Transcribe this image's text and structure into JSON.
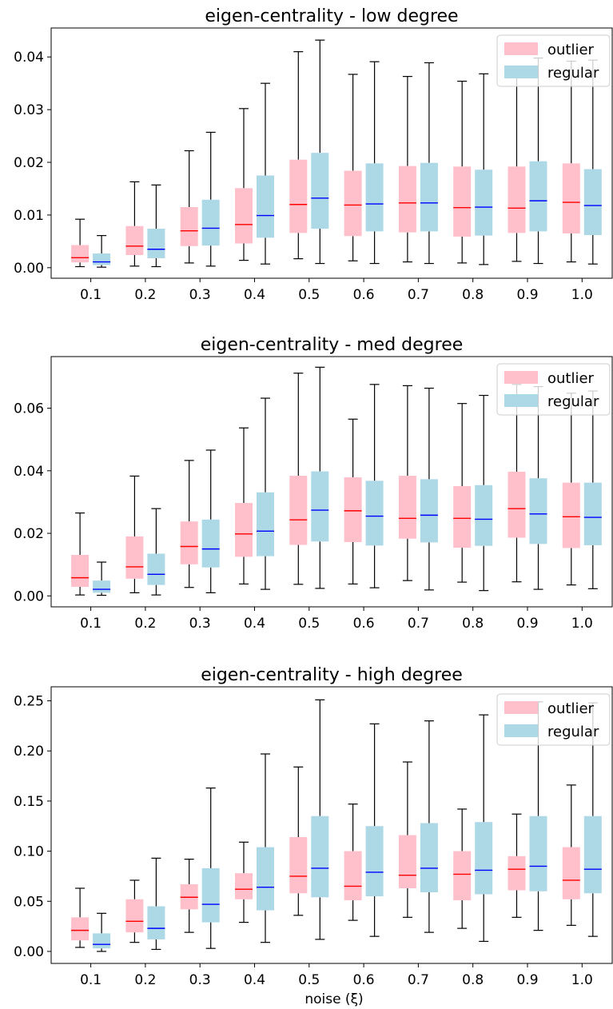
{
  "colors": {
    "outlier_fill": "#ffc0cb",
    "regular_fill": "#add8e6",
    "outlier_median": "#ff0000",
    "regular_median": "#0000ff",
    "whisker": "#000000"
  },
  "legend": {
    "outlier": "outlier",
    "regular": "regular"
  },
  "xlabel": "noise (ξ)",
  "chart_data": [
    {
      "type": "box",
      "title": "eigen-centrality - low degree",
      "xlabel": "",
      "ylabel": "",
      "categories": [
        "0.1",
        "0.2",
        "0.3",
        "0.4",
        "0.5",
        "0.6",
        "0.7",
        "0.8",
        "0.9",
        "1.0"
      ],
      "ylim": [
        -0.002,
        0.0455
      ],
      "yticks": [
        0.0,
        0.01,
        0.02,
        0.03,
        0.04
      ],
      "ytick_labels": [
        "0.00",
        "0.01",
        "0.02",
        "0.03",
        "0.04"
      ],
      "legend_position": "top-right",
      "grid": false,
      "series": [
        {
          "name": "outlier",
          "boxes": [
            {
              "whislo": 0.0002,
              "q1": 0.001,
              "med": 0.0019,
              "q3": 0.0043,
              "whishi": 0.0092
            },
            {
              "whislo": 0.0003,
              "q1": 0.0024,
              "med": 0.0041,
              "q3": 0.0079,
              "whishi": 0.0163
            },
            {
              "whislo": 0.0009,
              "q1": 0.0041,
              "med": 0.007,
              "q3": 0.0115,
              "whishi": 0.0222
            },
            {
              "whislo": 0.0014,
              "q1": 0.0046,
              "med": 0.0082,
              "q3": 0.0151,
              "whishi": 0.0302
            },
            {
              "whislo": 0.0017,
              "q1": 0.0066,
              "med": 0.012,
              "q3": 0.0205,
              "whishi": 0.041
            },
            {
              "whislo": 0.0013,
              "q1": 0.006,
              "med": 0.0119,
              "q3": 0.0184,
              "whishi": 0.0367
            },
            {
              "whislo": 0.0011,
              "q1": 0.0067,
              "med": 0.0123,
              "q3": 0.0193,
              "whishi": 0.0363
            },
            {
              "whislo": 0.0009,
              "q1": 0.0059,
              "med": 0.0114,
              "q3": 0.0192,
              "whishi": 0.0354
            },
            {
              "whislo": 0.0012,
              "q1": 0.0066,
              "med": 0.0113,
              "q3": 0.0192,
              "whishi": 0.0382
            },
            {
              "whislo": 0.0011,
              "q1": 0.0065,
              "med": 0.0124,
              "q3": 0.0198,
              "whishi": 0.0392
            }
          ]
        },
        {
          "name": "regular",
          "boxes": [
            {
              "whislo": 0.0001,
              "q1": 0.0005,
              "med": 0.0011,
              "q3": 0.0027,
              "whishi": 0.0061
            },
            {
              "whislo": 0.0002,
              "q1": 0.0018,
              "med": 0.0035,
              "q3": 0.0074,
              "whishi": 0.0157
            },
            {
              "whislo": 0.0003,
              "q1": 0.0042,
              "med": 0.0075,
              "q3": 0.0129,
              "whishi": 0.0257
            },
            {
              "whislo": 0.0007,
              "q1": 0.0057,
              "med": 0.0099,
              "q3": 0.0175,
              "whishi": 0.035
            },
            {
              "whislo": 0.0008,
              "q1": 0.0074,
              "med": 0.0132,
              "q3": 0.0218,
              "whishi": 0.0432
            },
            {
              "whislo": 0.0008,
              "q1": 0.0069,
              "med": 0.0121,
              "q3": 0.0198,
              "whishi": 0.0391
            },
            {
              "whislo": 0.0008,
              "q1": 0.0069,
              "med": 0.0123,
              "q3": 0.0199,
              "whishi": 0.0389
            },
            {
              "whislo": 0.0006,
              "q1": 0.0061,
              "med": 0.0115,
              "q3": 0.0186,
              "whishi": 0.0368
            },
            {
              "whislo": 0.0008,
              "q1": 0.0069,
              "med": 0.0127,
              "q3": 0.0202,
              "whishi": 0.0398
            },
            {
              "whislo": 0.0007,
              "q1": 0.0062,
              "med": 0.0118,
              "q3": 0.0187,
              "whishi": 0.0394
            }
          ]
        }
      ]
    },
    {
      "type": "box",
      "title": "eigen-centrality - med degree",
      "xlabel": "",
      "ylabel": "",
      "categories": [
        "0.1",
        "0.2",
        "0.3",
        "0.4",
        "0.5",
        "0.6",
        "0.7",
        "0.8",
        "0.9",
        "1.0"
      ],
      "ylim": [
        -0.0035,
        0.0765
      ],
      "yticks": [
        0.0,
        0.02,
        0.04,
        0.06
      ],
      "ytick_labels": [
        "0.00",
        "0.02",
        "0.04",
        "0.06"
      ],
      "legend_position": "top-right",
      "grid": false,
      "series": [
        {
          "name": "outlier",
          "boxes": [
            {
              "whislo": 0.0003,
              "q1": 0.0029,
              "med": 0.0058,
              "q3": 0.0131,
              "whishi": 0.0265
            },
            {
              "whislo": 0.001,
              "q1": 0.0055,
              "med": 0.0093,
              "q3": 0.019,
              "whishi": 0.0383
            },
            {
              "whislo": 0.0027,
              "q1": 0.0101,
              "med": 0.0158,
              "q3": 0.0238,
              "whishi": 0.0433
            },
            {
              "whislo": 0.0038,
              "q1": 0.0125,
              "med": 0.0198,
              "q3": 0.0297,
              "whishi": 0.0537
            },
            {
              "whislo": 0.0037,
              "q1": 0.0163,
              "med": 0.0243,
              "q3": 0.0384,
              "whishi": 0.0712
            },
            {
              "whislo": 0.0038,
              "q1": 0.0172,
              "med": 0.0272,
              "q3": 0.0379,
              "whishi": 0.0565
            },
            {
              "whislo": 0.0049,
              "q1": 0.0183,
              "med": 0.0248,
              "q3": 0.0384,
              "whishi": 0.0672
            },
            {
              "whislo": 0.0044,
              "q1": 0.0154,
              "med": 0.0248,
              "q3": 0.0351,
              "whishi": 0.0615
            },
            {
              "whislo": 0.0045,
              "q1": 0.0186,
              "med": 0.0279,
              "q3": 0.0397,
              "whishi": 0.0676
            },
            {
              "whislo": 0.0035,
              "q1": 0.0153,
              "med": 0.0253,
              "q3": 0.0362,
              "whishi": 0.0648
            }
          ]
        },
        {
          "name": "regular",
          "boxes": [
            {
              "whislo": 0.0002,
              "q1": 0.001,
              "med": 0.0021,
              "q3": 0.0049,
              "whishi": 0.0108
            },
            {
              "whislo": 0.0003,
              "q1": 0.0035,
              "med": 0.0069,
              "q3": 0.0135,
              "whishi": 0.0279
            },
            {
              "whislo": 0.001,
              "q1": 0.0091,
              "med": 0.015,
              "q3": 0.0244,
              "whishi": 0.0466
            },
            {
              "whislo": 0.0021,
              "q1": 0.0127,
              "med": 0.0207,
              "q3": 0.0331,
              "whishi": 0.0632
            },
            {
              "whislo": 0.0024,
              "q1": 0.0174,
              "med": 0.0274,
              "q3": 0.0398,
              "whishi": 0.0731
            },
            {
              "whislo": 0.0026,
              "q1": 0.0161,
              "med": 0.0255,
              "q3": 0.0368,
              "whishi": 0.0676
            },
            {
              "whislo": 0.0019,
              "q1": 0.0171,
              "med": 0.0258,
              "q3": 0.0373,
              "whishi": 0.0664
            },
            {
              "whislo": 0.0017,
              "q1": 0.016,
              "med": 0.0245,
              "q3": 0.0354,
              "whishi": 0.0641
            },
            {
              "whislo": 0.0021,
              "q1": 0.0166,
              "med": 0.0262,
              "q3": 0.0376,
              "whishi": 0.0669
            },
            {
              "whislo": 0.0023,
              "q1": 0.0162,
              "med": 0.0251,
              "q3": 0.0362,
              "whishi": 0.0655
            }
          ]
        }
      ]
    },
    {
      "type": "box",
      "title": "eigen-centrality - high degree",
      "xlabel": "noise (ξ)",
      "ylabel": "",
      "categories": [
        "0.1",
        "0.2",
        "0.3",
        "0.4",
        "0.5",
        "0.6",
        "0.7",
        "0.8",
        "0.9",
        "1.0"
      ],
      "ylim": [
        -0.012,
        0.264
      ],
      "yticks": [
        0.0,
        0.05,
        0.1,
        0.15,
        0.2,
        0.25
      ],
      "ytick_labels": [
        "0.00",
        "0.05",
        "0.10",
        "0.15",
        "0.20",
        "0.25"
      ],
      "legend_position": "top-right",
      "grid": false,
      "series": [
        {
          "name": "outlier",
          "boxes": [
            {
              "whislo": 0.004,
              "q1": 0.011,
              "med": 0.021,
              "q3": 0.034,
              "whishi": 0.063
            },
            {
              "whislo": 0.009,
              "q1": 0.019,
              "med": 0.03,
              "q3": 0.052,
              "whishi": 0.071
            },
            {
              "whislo": 0.019,
              "q1": 0.042,
              "med": 0.054,
              "q3": 0.067,
              "whishi": 0.092
            },
            {
              "whislo": 0.029,
              "q1": 0.052,
              "med": 0.062,
              "q3": 0.078,
              "whishi": 0.109
            },
            {
              "whislo": 0.036,
              "q1": 0.058,
              "med": 0.075,
              "q3": 0.114,
              "whishi": 0.184
            },
            {
              "whislo": 0.031,
              "q1": 0.051,
              "med": 0.065,
              "q3": 0.1,
              "whishi": 0.147
            },
            {
              "whislo": 0.034,
              "q1": 0.063,
              "med": 0.076,
              "q3": 0.116,
              "whishi": 0.189
            },
            {
              "whislo": 0.023,
              "q1": 0.051,
              "med": 0.077,
              "q3": 0.1,
              "whishi": 0.142
            },
            {
              "whislo": 0.034,
              "q1": 0.061,
              "med": 0.082,
              "q3": 0.095,
              "whishi": 0.137
            },
            {
              "whislo": 0.026,
              "q1": 0.052,
              "med": 0.071,
              "q3": 0.104,
              "whishi": 0.166
            }
          ]
        },
        {
          "name": "regular",
          "boxes": [
            {
              "whislo": 0.0,
              "q1": 0.003,
              "med": 0.007,
              "q3": 0.018,
              "whishi": 0.038
            },
            {
              "whislo": 0.002,
              "q1": 0.012,
              "med": 0.023,
              "q3": 0.045,
              "whishi": 0.093
            },
            {
              "whislo": 0.003,
              "q1": 0.029,
              "med": 0.047,
              "q3": 0.083,
              "whishi": 0.163
            },
            {
              "whislo": 0.009,
              "q1": 0.041,
              "med": 0.064,
              "q3": 0.104,
              "whishi": 0.197
            },
            {
              "whislo": 0.012,
              "q1": 0.054,
              "med": 0.083,
              "q3": 0.135,
              "whishi": 0.251
            },
            {
              "whislo": 0.015,
              "q1": 0.055,
              "med": 0.079,
              "q3": 0.125,
              "whishi": 0.227
            },
            {
              "whislo": 0.019,
              "q1": 0.059,
              "med": 0.083,
              "q3": 0.128,
              "whishi": 0.23
            },
            {
              "whislo": 0.01,
              "q1": 0.057,
              "med": 0.081,
              "q3": 0.129,
              "whishi": 0.236
            },
            {
              "whislo": 0.021,
              "q1": 0.06,
              "med": 0.085,
              "q3": 0.135,
              "whishi": 0.249
            },
            {
              "whislo": 0.015,
              "q1": 0.058,
              "med": 0.082,
              "q3": 0.135,
              "whishi": 0.248
            }
          ]
        }
      ]
    }
  ]
}
